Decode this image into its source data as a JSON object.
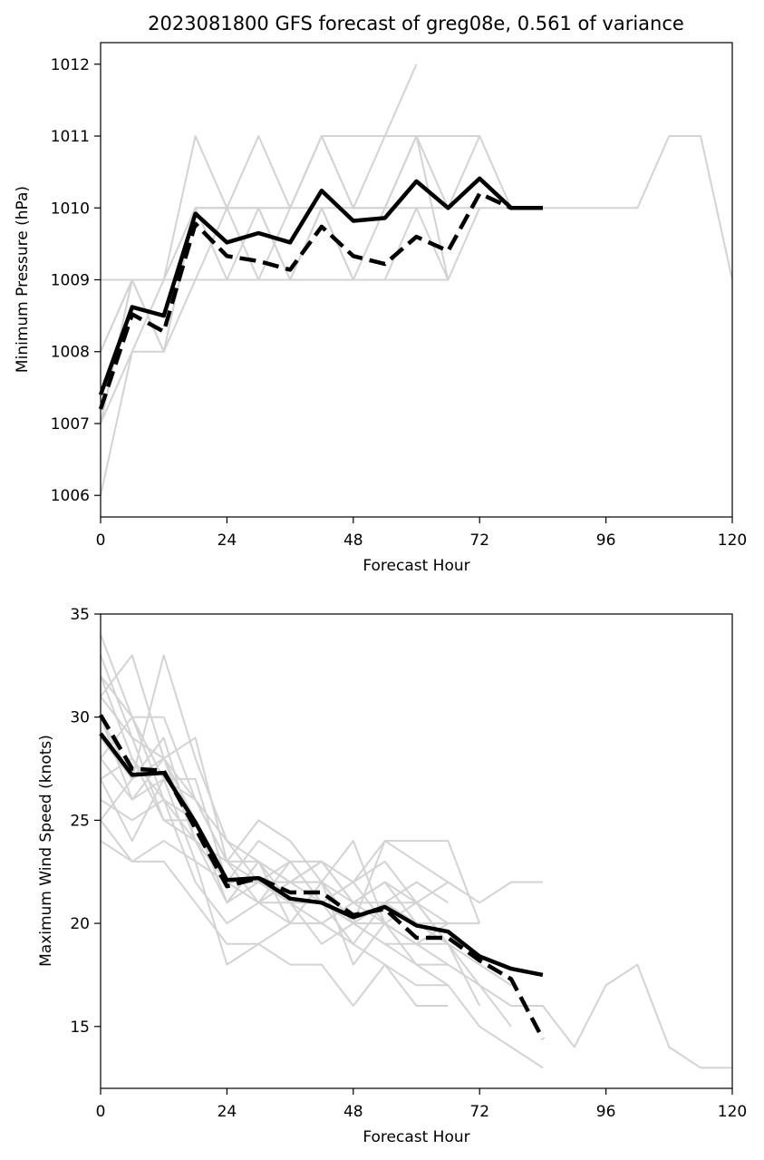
{
  "chart_data": [
    {
      "type": "line",
      "title": "2023081800 GFS forecast of greg08e, 0.561 of variance",
      "xlabel": "Forecast Hour",
      "ylabel": "Minimum Pressure (hPa)",
      "xlim": [
        0,
        120
      ],
      "ylim": [
        1005.7,
        1012.3
      ],
      "xticks": [
        0,
        24,
        48,
        72,
        96,
        120
      ],
      "yticks": [
        1006,
        1007,
        1008,
        1009,
        1010,
        1011,
        1012
      ],
      "grid": false,
      "colors": {
        "members": "#d3d3d3",
        "mean": "#000000"
      },
      "series": [
        {
          "style": "member",
          "x": [
            0,
            6,
            12,
            18,
            24,
            30,
            36,
            42,
            48,
            54,
            60
          ],
          "y": [
            1006,
            1008,
            1008,
            1010,
            1010,
            1010,
            1010,
            1011,
            1010,
            1011,
            1012
          ]
        },
        {
          "style": "member",
          "x": [
            0,
            6,
            12,
            18,
            24,
            30,
            36,
            42,
            48,
            54,
            60,
            66,
            72,
            78,
            84
          ],
          "y": [
            1007,
            1009,
            1009,
            1011,
            1010,
            1011,
            1010,
            1011,
            1011,
            1011,
            1011,
            1011,
            1011,
            1010,
            1010
          ]
        },
        {
          "style": "member",
          "x": [
            0,
            6,
            12,
            18,
            24,
            30,
            36,
            42,
            48,
            54,
            60,
            66,
            72,
            78,
            84,
            90,
            96,
            102,
            108,
            114,
            120
          ],
          "y": [
            1009,
            1009,
            1009,
            1010,
            1010,
            1010,
            1010,
            1010,
            1010,
            1010,
            1010,
            1010,
            1010,
            1010,
            1010,
            1010,
            1010,
            1010,
            1011,
            1011,
            1009
          ]
        },
        {
          "style": "member",
          "x": [
            0,
            6,
            12,
            18,
            24,
            30,
            36,
            42,
            48,
            54,
            60,
            66
          ],
          "y": [
            1008,
            1009,
            1008,
            1009,
            1009,
            1009,
            1009,
            1009,
            1009,
            1009,
            1009,
            1009
          ]
        },
        {
          "style": "member",
          "x": [
            0,
            6,
            12,
            18,
            24,
            30,
            36,
            42,
            48,
            54,
            60,
            66,
            72
          ],
          "y": [
            1007,
            1008,
            1009,
            1010,
            1009,
            1010,
            1009,
            1010,
            1009,
            1010,
            1011,
            1010,
            1011
          ]
        },
        {
          "style": "member",
          "x": [
            0,
            6,
            12,
            18,
            24,
            30,
            36,
            42,
            48,
            54,
            60,
            66
          ],
          "y": [
            1007,
            1009,
            1008,
            1010,
            1010,
            1009,
            1010,
            1011,
            1010,
            1010,
            1011,
            1009
          ]
        },
        {
          "style": "member",
          "x": [
            0,
            6,
            12,
            18,
            24,
            30,
            36,
            42,
            48,
            54,
            60,
            66,
            72
          ],
          "y": [
            1008,
            1009,
            1009,
            1009,
            1010,
            1010,
            1009,
            1010,
            1009,
            1009,
            1010,
            1009,
            1010
          ]
        },
        {
          "style": "mean",
          "x": [
            0,
            6,
            12,
            18,
            24,
            30,
            36,
            42,
            48,
            54,
            60,
            66,
            72,
            78,
            84
          ],
          "y": [
            1007.4,
            1008.62,
            1008.5,
            1009.92,
            1009.52,
            1009.65,
            1009.52,
            1010.24,
            1009.82,
            1009.86,
            1010.37,
            1010.0,
            1010.41,
            1010.0,
            1010.0
          ]
        },
        {
          "style": "dashed",
          "x": [
            0,
            6,
            12,
            18,
            24,
            30,
            36,
            42,
            48,
            54,
            60,
            66,
            72,
            78,
            84
          ],
          "y": [
            1007.2,
            1008.52,
            1008.28,
            1009.78,
            1009.33,
            1009.26,
            1009.14,
            1009.74,
            1009.33,
            1009.22,
            1009.6,
            1009.4,
            1010.2,
            1010.0,
            1010.0
          ]
        }
      ]
    },
    {
      "type": "line",
      "title": "",
      "xlabel": "Forecast Hour",
      "ylabel": "Maximum Wind Speed (knots)",
      "xlim": [
        0,
        120
      ],
      "ylim": [
        12,
        35
      ],
      "xticks": [
        0,
        24,
        48,
        72,
        96,
        120
      ],
      "yticks": [
        15,
        20,
        25,
        30,
        35
      ],
      "grid": false,
      "colors": {
        "members": "#d3d3d3",
        "mean": "#000000"
      },
      "series": [
        {
          "style": "member",
          "x": [
            0,
            6,
            12,
            18,
            24,
            30,
            36,
            42,
            48,
            54,
            60,
            66,
            72,
            78,
            84,
            90,
            96,
            102,
            108,
            114,
            120
          ],
          "y": [
            34,
            30,
            30,
            26,
            24,
            23,
            22,
            22,
            21,
            20,
            19,
            18,
            17,
            16,
            16,
            14,
            17,
            18,
            14,
            13,
            13
          ]
        },
        {
          "style": "member",
          "x": [
            0,
            6,
            12,
            18,
            24,
            30,
            36,
            42,
            48,
            54,
            60,
            66,
            72,
            78,
            84
          ],
          "y": [
            33,
            29,
            28,
            25,
            22,
            22,
            21,
            21,
            20,
            20,
            18,
            17,
            15,
            14,
            13
          ]
        },
        {
          "style": "member",
          "x": [
            0,
            6,
            12,
            18,
            24,
            30,
            36,
            42,
            48,
            54,
            60,
            66,
            72,
            78,
            84
          ],
          "y": [
            32,
            30,
            27,
            27,
            22,
            24,
            23,
            23,
            22,
            24,
            23,
            22,
            21,
            22,
            22
          ]
        },
        {
          "style": "member",
          "x": [
            0,
            6,
            12,
            18,
            24,
            30,
            36,
            42,
            48,
            54,
            60,
            66,
            72,
            78
          ],
          "y": [
            31,
            33,
            28,
            29,
            23,
            25,
            24,
            22,
            24,
            20,
            21,
            19,
            18,
            17
          ]
        },
        {
          "style": "member",
          "x": [
            0,
            6,
            12,
            18,
            24,
            30,
            36,
            42,
            48,
            54,
            60,
            66,
            72,
            78
          ],
          "y": [
            30,
            27,
            33,
            28,
            24,
            22,
            22,
            23,
            21,
            22,
            20,
            19,
            17,
            15
          ]
        },
        {
          "style": "member",
          "x": [
            0,
            6,
            12,
            18,
            24,
            30,
            36,
            42,
            48,
            54,
            60,
            66,
            72
          ],
          "y": [
            29,
            27,
            29,
            24,
            22,
            21,
            20,
            22,
            20,
            24,
            24,
            24,
            20
          ]
        },
        {
          "style": "member",
          "x": [
            0,
            6,
            12,
            18,
            24,
            30,
            36,
            42,
            48,
            54,
            60,
            66,
            72
          ],
          "y": [
            28,
            26,
            27,
            26,
            23,
            22,
            23,
            21,
            19,
            21,
            21,
            19,
            16
          ]
        },
        {
          "style": "member",
          "x": [
            0,
            6,
            12,
            18,
            24,
            30,
            36,
            42,
            48,
            54,
            60,
            66,
            72
          ],
          "y": [
            27,
            28,
            26,
            24,
            21,
            23,
            22,
            21,
            22,
            20,
            19,
            20,
            20
          ]
        },
        {
          "style": "member",
          "x": [
            0,
            6,
            12,
            18,
            24,
            30,
            36,
            42,
            48,
            54,
            60,
            66
          ],
          "y": [
            26,
            25,
            26,
            22,
            20,
            21,
            21,
            19,
            20,
            19,
            18,
            18
          ]
        },
        {
          "style": "member",
          "x": [
            0,
            6,
            12,
            18,
            24,
            30,
            36,
            42,
            48,
            54,
            60,
            66
          ],
          "y": [
            25,
            23,
            23,
            21,
            19,
            19,
            20,
            20,
            19,
            18,
            17,
            17
          ]
        },
        {
          "style": "member",
          "x": [
            0,
            6,
            12,
            18,
            24,
            30,
            36,
            42,
            48,
            54,
            60,
            66
          ],
          "y": [
            24,
            23,
            24,
            23,
            18,
            19,
            18,
            18,
            16,
            18,
            16,
            16
          ]
        },
        {
          "style": "member",
          "x": [
            0,
            6,
            12,
            18,
            24,
            30,
            36,
            42,
            48,
            54,
            60,
            66
          ],
          "y": [
            32,
            28,
            25,
            24,
            22,
            21,
            22,
            23,
            21,
            22,
            21,
            22
          ]
        },
        {
          "style": "member",
          "x": [
            0,
            6,
            12,
            18,
            24,
            30,
            36,
            42,
            48,
            54,
            60,
            66
          ],
          "y": [
            31,
            29,
            25,
            25,
            21,
            22,
            21,
            21,
            20,
            19,
            19,
            18
          ]
        },
        {
          "style": "member",
          "x": [
            0,
            6,
            12,
            18,
            24,
            30,
            36,
            42,
            48,
            54,
            60,
            66
          ],
          "y": [
            30,
            26,
            28,
            26,
            23,
            23,
            21,
            20,
            21,
            21,
            20,
            20
          ]
        },
        {
          "style": "member",
          "x": [
            0,
            6,
            12,
            18,
            24,
            30,
            36,
            42,
            48,
            54,
            60,
            66
          ],
          "y": [
            28,
            30,
            26,
            25,
            21,
            23,
            20,
            22,
            18,
            20,
            19,
            19
          ]
        },
        {
          "style": "member",
          "x": [
            0,
            6,
            12,
            18,
            24,
            30,
            36,
            42,
            48,
            54,
            60,
            66
          ],
          "y": [
            27,
            24,
            27,
            23,
            22,
            22,
            22,
            22,
            20,
            21,
            22,
            21
          ]
        },
        {
          "style": "member",
          "x": [
            0,
            6,
            12,
            18,
            24,
            30,
            36,
            42,
            48,
            54,
            60,
            66
          ],
          "y": [
            25,
            27,
            28,
            24,
            23,
            21,
            23,
            21,
            22,
            23,
            21,
            20
          ]
        },
        {
          "style": "mean",
          "x": [
            0,
            6,
            12,
            18,
            24,
            30,
            36,
            42,
            48,
            54,
            60,
            66,
            72,
            78,
            84
          ],
          "y": [
            29.2,
            27.2,
            27.3,
            24.9,
            22.1,
            22.2,
            21.2,
            21.0,
            20.3,
            20.8,
            19.9,
            19.6,
            18.4,
            17.8,
            17.5
          ]
        },
        {
          "style": "dashed",
          "x": [
            0,
            6,
            12,
            18,
            24,
            30,
            36,
            42,
            48,
            54,
            60,
            66,
            72,
            78,
            84
          ],
          "y": [
            30.1,
            27.5,
            27.4,
            24.6,
            21.8,
            22.2,
            21.5,
            21.5,
            20.4,
            20.7,
            19.3,
            19.3,
            18.2,
            17.3,
            14.4
          ]
        }
      ]
    }
  ]
}
